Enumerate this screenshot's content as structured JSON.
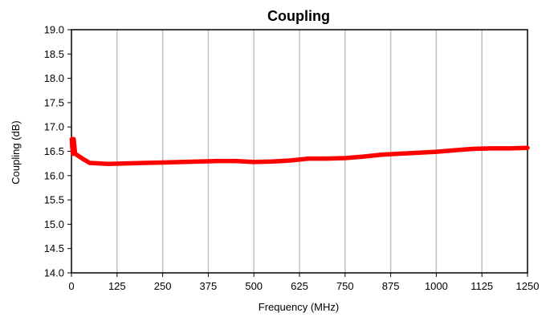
{
  "chart_data": {
    "type": "line",
    "title": "Coupling",
    "xlabel": "Frequency (MHz)",
    "ylabel": "Coupling (dB)",
    "xlim": [
      0,
      1250
    ],
    "ylim": [
      14.0,
      19.0
    ],
    "xticks": [
      "0",
      "125",
      "250",
      "375",
      "500",
      "625",
      "750",
      "875",
      "1000",
      "1125",
      "1250"
    ],
    "yticks": [
      "14.0",
      "14.5",
      "15.0",
      "15.5",
      "16.0",
      "16.5",
      "17.0",
      "17.5",
      "18.0",
      "18.5",
      "19.0"
    ],
    "grid": {
      "vertical": true,
      "horizontal": false
    },
    "legend": "none",
    "series": [
      {
        "color": "#ff0000",
        "x": [
          1,
          2,
          4,
          6,
          10,
          30,
          50,
          100,
          150,
          200,
          250,
          300,
          350,
          400,
          450,
          500,
          550,
          600,
          650,
          700,
          750,
          800,
          850,
          900,
          950,
          1000,
          1050,
          1100,
          1150,
          1200,
          1250
        ],
        "y": [
          16.75,
          16.6,
          16.45,
          16.75,
          16.45,
          16.35,
          16.26,
          16.24,
          16.25,
          16.26,
          16.27,
          16.28,
          16.29,
          16.3,
          16.3,
          16.28,
          16.29,
          16.31,
          16.35,
          16.35,
          16.36,
          16.39,
          16.43,
          16.45,
          16.47,
          16.49,
          16.52,
          16.55,
          16.56,
          16.56,
          16.57
        ]
      }
    ]
  }
}
